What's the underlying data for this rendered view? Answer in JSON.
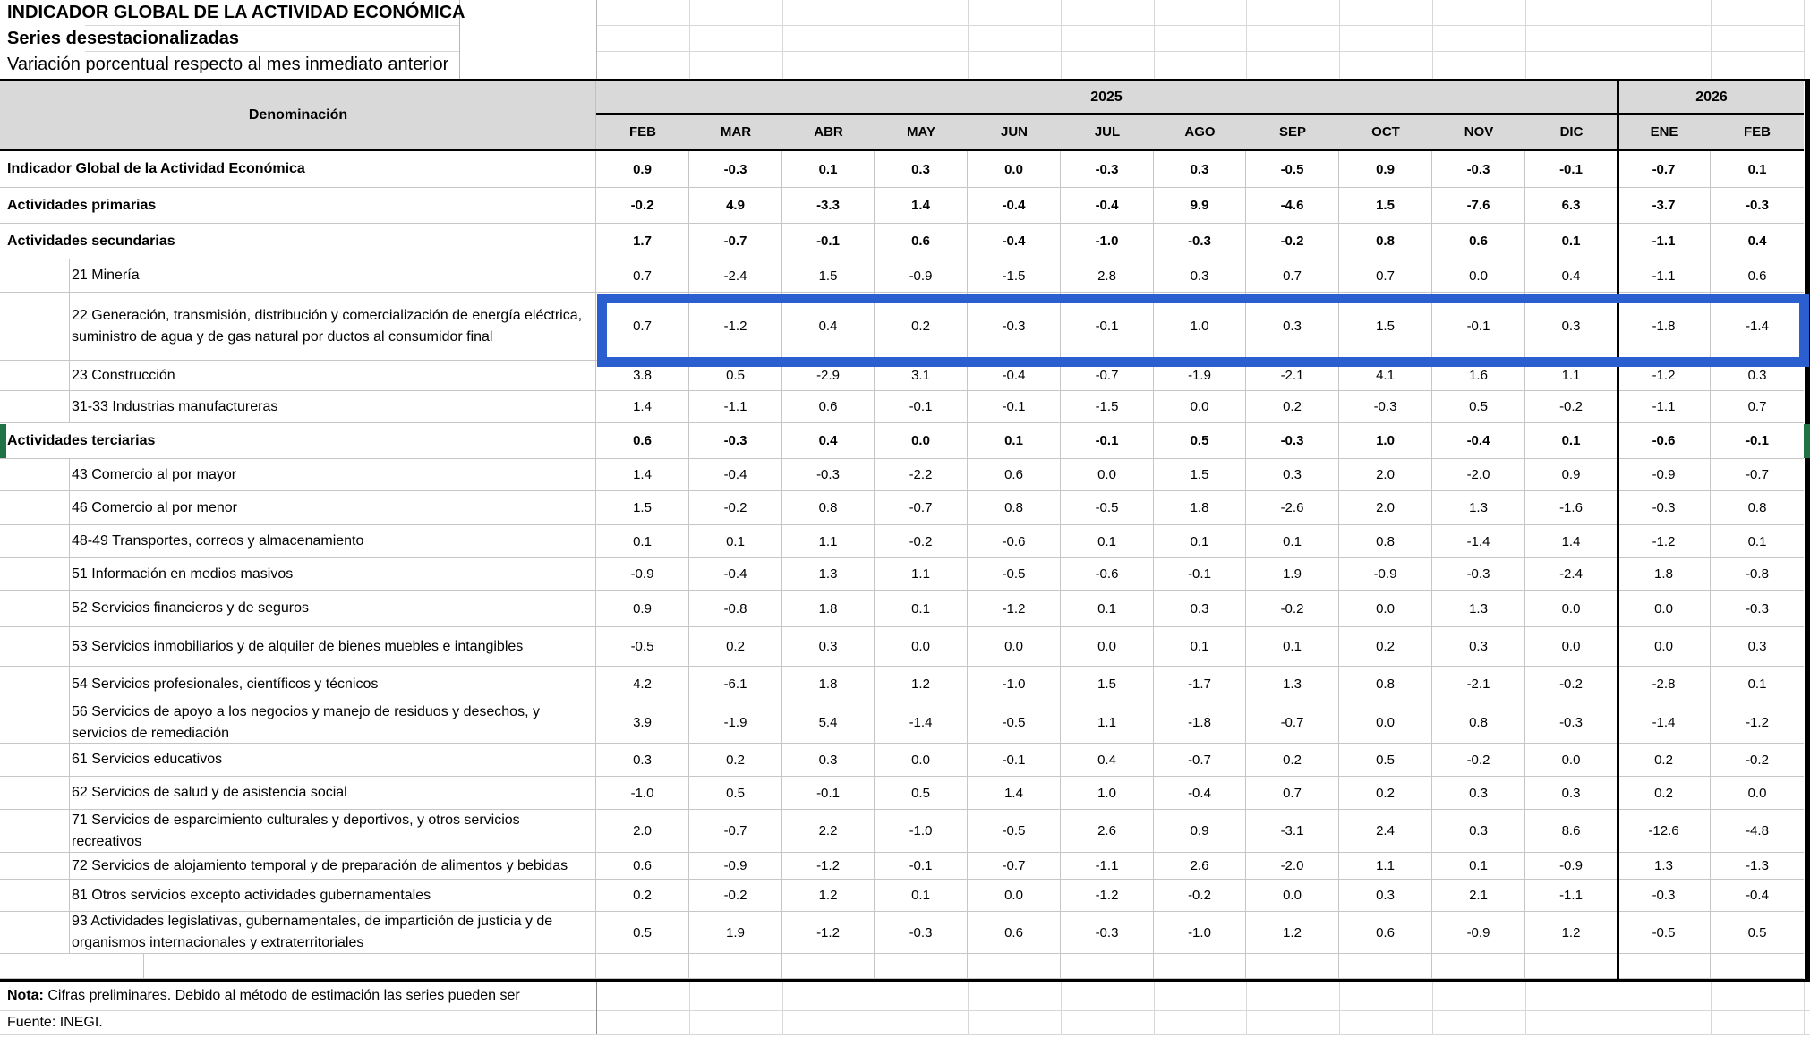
{
  "titles": {
    "line1": "INDICADOR GLOBAL DE LA ACTIVIDAD ECONÓMICA",
    "line2": "Series desestacionalizadas",
    "line3": "Variación porcentual respecto al mes inmediato anterior"
  },
  "header": {
    "denominacion": "Denominación",
    "year_groups": [
      {
        "label": "2025",
        "months_span": 11
      },
      {
        "label": "2026",
        "months_span": 2
      }
    ],
    "months": [
      "FEB",
      "MAR",
      "ABR",
      "MAY",
      "JUN",
      "JUL",
      "AGO",
      "SEP",
      "OCT",
      "NOV",
      "DIC",
      "ENE",
      "FEB"
    ]
  },
  "rows": [
    {
      "label": "Indicador Global de la Actividad Económica",
      "bold": true,
      "values": [
        "0.9",
        "-0.3",
        "0.1",
        "0.3",
        "0.0",
        "-0.3",
        "0.3",
        "-0.5",
        "0.9",
        "-0.3",
        "-0.1",
        "-0.7",
        "0.1"
      ]
    },
    {
      "label": "Actividades primarias",
      "bold": true,
      "values": [
        "-0.2",
        "4.9",
        "-3.3",
        "1.4",
        "-0.4",
        "-0.4",
        "9.9",
        "-4.6",
        "1.5",
        "-7.6",
        "6.3",
        "-3.7",
        "-0.3"
      ]
    },
    {
      "label": "Actividades secundarias",
      "bold": true,
      "values": [
        "1.7",
        "-0.7",
        "-0.1",
        "0.6",
        "-0.4",
        "-1.0",
        "-0.3",
        "-0.2",
        "0.8",
        "0.6",
        "0.1",
        "-1.1",
        "0.4"
      ]
    },
    {
      "label": "21 Minería",
      "bold": false,
      "values": [
        "0.7",
        "-2.4",
        "1.5",
        "-0.9",
        "-1.5",
        "2.8",
        "0.3",
        "0.7",
        "0.7",
        "0.0",
        "0.4",
        "-1.1",
        "0.6"
      ]
    },
    {
      "label": "22 Generación, transmisión, distribución y comercialización de energía eléctrica, suministro de agua y de gas natural por ductos al consumidor final",
      "bold": false,
      "highlighted": true,
      "values": [
        "0.7",
        "-1.2",
        "0.4",
        "0.2",
        "-0.3",
        "-0.1",
        "1.0",
        "0.3",
        "1.5",
        "-0.1",
        "0.3",
        "-1.8",
        "-1.4"
      ]
    },
    {
      "label": "23 Construcción",
      "bold": false,
      "values": [
        "3.8",
        "0.5",
        "-2.9",
        "3.1",
        "-0.4",
        "-0.7",
        "-1.9",
        "-2.1",
        "4.1",
        "1.6",
        "1.1",
        "-1.2",
        "0.3"
      ]
    },
    {
      "label": "31-33 Industrias manufactureras",
      "bold": false,
      "values": [
        "1.4",
        "-1.1",
        "0.6",
        "-0.1",
        "-0.1",
        "-1.5",
        "0.0",
        "0.2",
        "-0.3",
        "0.5",
        "-0.2",
        "-1.1",
        "0.7"
      ]
    },
    {
      "label": "Actividades terciarias",
      "bold": true,
      "marked": true,
      "values": [
        "0.6",
        "-0.3",
        "0.4",
        "0.0",
        "0.1",
        "-0.1",
        "0.5",
        "-0.3",
        "1.0",
        "-0.4",
        "0.1",
        "-0.6",
        "-0.1"
      ]
    },
    {
      "label": "43 Comercio al por mayor",
      "bold": false,
      "values": [
        "1.4",
        "-0.4",
        "-0.3",
        "-2.2",
        "0.6",
        "0.0",
        "1.5",
        "0.3",
        "2.0",
        "-2.0",
        "0.9",
        "-0.9",
        "-0.7"
      ]
    },
    {
      "label": "46 Comercio al por menor",
      "bold": false,
      "values": [
        "1.5",
        "-0.2",
        "0.8",
        "-0.7",
        "0.8",
        "-0.5",
        "1.8",
        "-2.6",
        "2.0",
        "1.3",
        "-1.6",
        "-0.3",
        "0.8"
      ]
    },
    {
      "label": "48-49 Transportes, correos y almacenamiento",
      "bold": false,
      "values": [
        "0.1",
        "0.1",
        "1.1",
        "-0.2",
        "-0.6",
        "0.1",
        "0.1",
        "0.1",
        "0.8",
        "-1.4",
        "1.4",
        "-1.2",
        "0.1"
      ]
    },
    {
      "label": "51 Información en medios masivos",
      "bold": false,
      "values": [
        "-0.9",
        "-0.4",
        "1.3",
        "1.1",
        "-0.5",
        "-0.6",
        "-0.1",
        "1.9",
        "-0.9",
        "-0.3",
        "-2.4",
        "1.8",
        "-0.8"
      ]
    },
    {
      "label": "52 Servicios financieros y de seguros",
      "bold": false,
      "values": [
        "0.9",
        "-0.8",
        "1.8",
        "0.1",
        "-1.2",
        "0.1",
        "0.3",
        "-0.2",
        "0.0",
        "1.3",
        "0.0",
        "0.0",
        "-0.3"
      ]
    },
    {
      "label": "53 Servicios inmobiliarios y de alquiler de bienes muebles e intangibles",
      "bold": false,
      "values": [
        "-0.5",
        "0.2",
        "0.3",
        "0.0",
        "0.0",
        "0.0",
        "0.1",
        "0.1",
        "0.2",
        "0.3",
        "0.0",
        "0.0",
        "0.3"
      ]
    },
    {
      "label": "54 Servicios profesionales, científicos y técnicos",
      "bold": false,
      "values": [
        "4.2",
        "-6.1",
        "1.8",
        "1.2",
        "-1.0",
        "1.5",
        "-1.7",
        "1.3",
        "0.8",
        "-2.1",
        "-0.2",
        "-2.8",
        "0.1"
      ]
    },
    {
      "label": "56 Servicios de apoyo a los negocios y manejo de residuos y desechos, y servicios de remediación",
      "bold": false,
      "values": [
        "3.9",
        "-1.9",
        "5.4",
        "-1.4",
        "-0.5",
        "1.1",
        "-1.8",
        "-0.7",
        "0.0",
        "0.8",
        "-0.3",
        "-1.4",
        "-1.2"
      ]
    },
    {
      "label": "61 Servicios educativos",
      "bold": false,
      "values": [
        "0.3",
        "0.2",
        "0.3",
        "0.0",
        "-0.1",
        "0.4",
        "-0.7",
        "0.2",
        "0.5",
        "-0.2",
        "0.0",
        "0.2",
        "-0.2"
      ]
    },
    {
      "label": "62 Servicios de salud y de asistencia social",
      "bold": false,
      "values": [
        "-1.0",
        "0.5",
        "-0.1",
        "0.5",
        "1.4",
        "1.0",
        "-0.4",
        "0.7",
        "0.2",
        "0.3",
        "0.3",
        "0.2",
        "0.0"
      ]
    },
    {
      "label": "71 Servicios de esparcimiento culturales y deportivos, y otros servicios recreativos",
      "bold": false,
      "values": [
        "2.0",
        "-0.7",
        "2.2",
        "-1.0",
        "-0.5",
        "2.6",
        "0.9",
        "-3.1",
        "2.4",
        "0.3",
        "8.6",
        "-12.6",
        "-4.8"
      ]
    },
    {
      "label": "72 Servicios de alojamiento temporal y de preparación de alimentos y bebidas",
      "bold": false,
      "values": [
        "0.6",
        "-0.9",
        "-1.2",
        "-0.1",
        "-0.7",
        "-1.1",
        "2.6",
        "-2.0",
        "1.1",
        "0.1",
        "-0.9",
        "1.3",
        "-1.3"
      ]
    },
    {
      "label": "81 Otros servicios excepto actividades gubernamentales",
      "bold": false,
      "values": [
        "0.2",
        "-0.2",
        "1.2",
        "0.1",
        "0.0",
        "-1.2",
        "-0.2",
        "0.0",
        "0.3",
        "2.1",
        "-1.1",
        "-0.3",
        "-0.4"
      ]
    },
    {
      "label": "93 Actividades legislativas, gubernamentales, de impartición de justicia y de organismos internacionales y extraterritoriales",
      "bold": false,
      "values": [
        "0.5",
        "1.9",
        "-1.2",
        "-0.3",
        "0.6",
        "-0.3",
        "-1.0",
        "1.2",
        "0.6",
        "-0.9",
        "1.2",
        "-0.5",
        "0.5"
      ]
    }
  ],
  "footer": {
    "nota_label": "Nota:",
    "nota_text": " Cifras preliminares. Debido al método de estimación las series pueden ser",
    "fuente": "Fuente: INEGI."
  },
  "colors": {
    "header_bg": "#d9d9d9",
    "inner_grid": "#c6c6c6",
    "outer_gridline": "#d8d8d8",
    "table_border": "#000000",
    "highlight_blue": "#2b5ecf",
    "marker_green": "#217346"
  }
}
